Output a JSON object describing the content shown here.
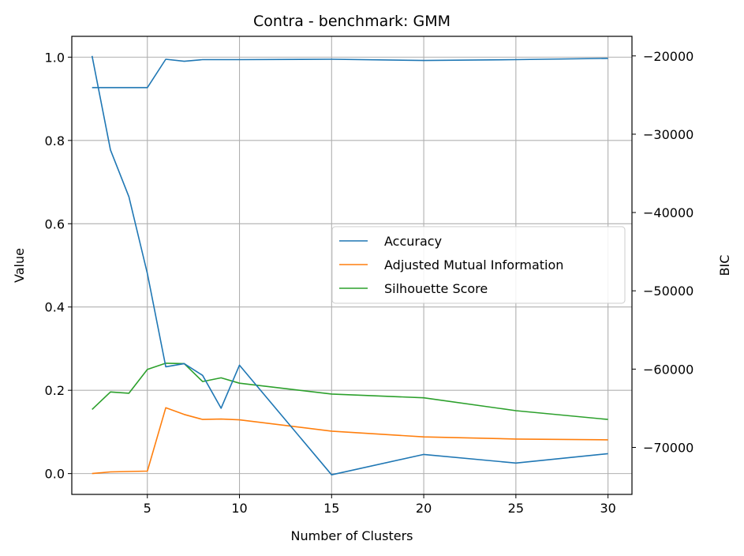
{
  "chart_data": {
    "type": "line",
    "title": "Contra - benchmark: GMM",
    "xlabel": "Number of Clusters",
    "ylabel": "Value",
    "y2label": "BIC",
    "xlim": [
      0.9,
      31.3
    ],
    "ylim": [
      -0.05,
      1.05
    ],
    "y2lim": [
      -76000,
      -17500
    ],
    "x_ticks": [
      5,
      10,
      15,
      20,
      25,
      30
    ],
    "y_ticks": [
      0.0,
      0.2,
      0.4,
      0.6,
      0.8,
      1.0
    ],
    "y_tick_labels": [
      "0.0",
      "0.2",
      "0.4",
      "0.6",
      "0.8",
      "1.0"
    ],
    "y2_ticks": [
      -70000,
      -60000,
      -50000,
      -40000,
      -30000,
      -20000
    ],
    "y2_tick_labels": [
      "−70000",
      "−60000",
      "−50000",
      "−40000",
      "−30000",
      "−20000"
    ],
    "grid": true,
    "legend_position": "center-right",
    "series": [
      {
        "name": "Accuracy",
        "color": "#1f77b4",
        "axis": "left",
        "x": [
          2,
          3,
          4,
          5,
          6,
          7,
          8,
          9,
          10,
          15,
          20,
          25,
          30
        ],
        "values": [
          0.927,
          0.927,
          0.927,
          0.927,
          0.995,
          0.99,
          0.994,
          0.994,
          0.994,
          0.995,
          0.992,
          0.994,
          0.997
        ]
      },
      {
        "name": "Adjusted Mutual Information",
        "color": "#ff7f0e",
        "axis": "left",
        "x": [
          2,
          3,
          4,
          5,
          6,
          7,
          8,
          9,
          10,
          15,
          20,
          25,
          30
        ],
        "values": [
          0.0,
          0.004,
          0.005,
          0.006,
          0.158,
          0.142,
          0.13,
          0.131,
          0.129,
          0.102,
          0.088,
          0.083,
          0.081
        ]
      },
      {
        "name": "Silhouette Score",
        "color": "#2ca02c",
        "axis": "left",
        "x": [
          2,
          3,
          4,
          5,
          6,
          7,
          8,
          9,
          10,
          15,
          20,
          25,
          30
        ],
        "values": [
          0.154,
          0.196,
          0.193,
          0.25,
          0.265,
          0.264,
          0.221,
          0.23,
          0.217,
          0.191,
          0.182,
          0.151,
          0.13
        ]
      },
      {
        "color": "#1f77b4",
        "axis": "right",
        "x": [
          2,
          3,
          4,
          5,
          6,
          7,
          8,
          9,
          10,
          15,
          20,
          25,
          30
        ],
        "values": [
          -20000,
          -32000,
          -38000,
          -47800,
          -59700,
          -59300,
          -60800,
          -65000,
          -59500,
          -73500,
          -70900,
          -72000,
          -70800
        ]
      }
    ]
  }
}
